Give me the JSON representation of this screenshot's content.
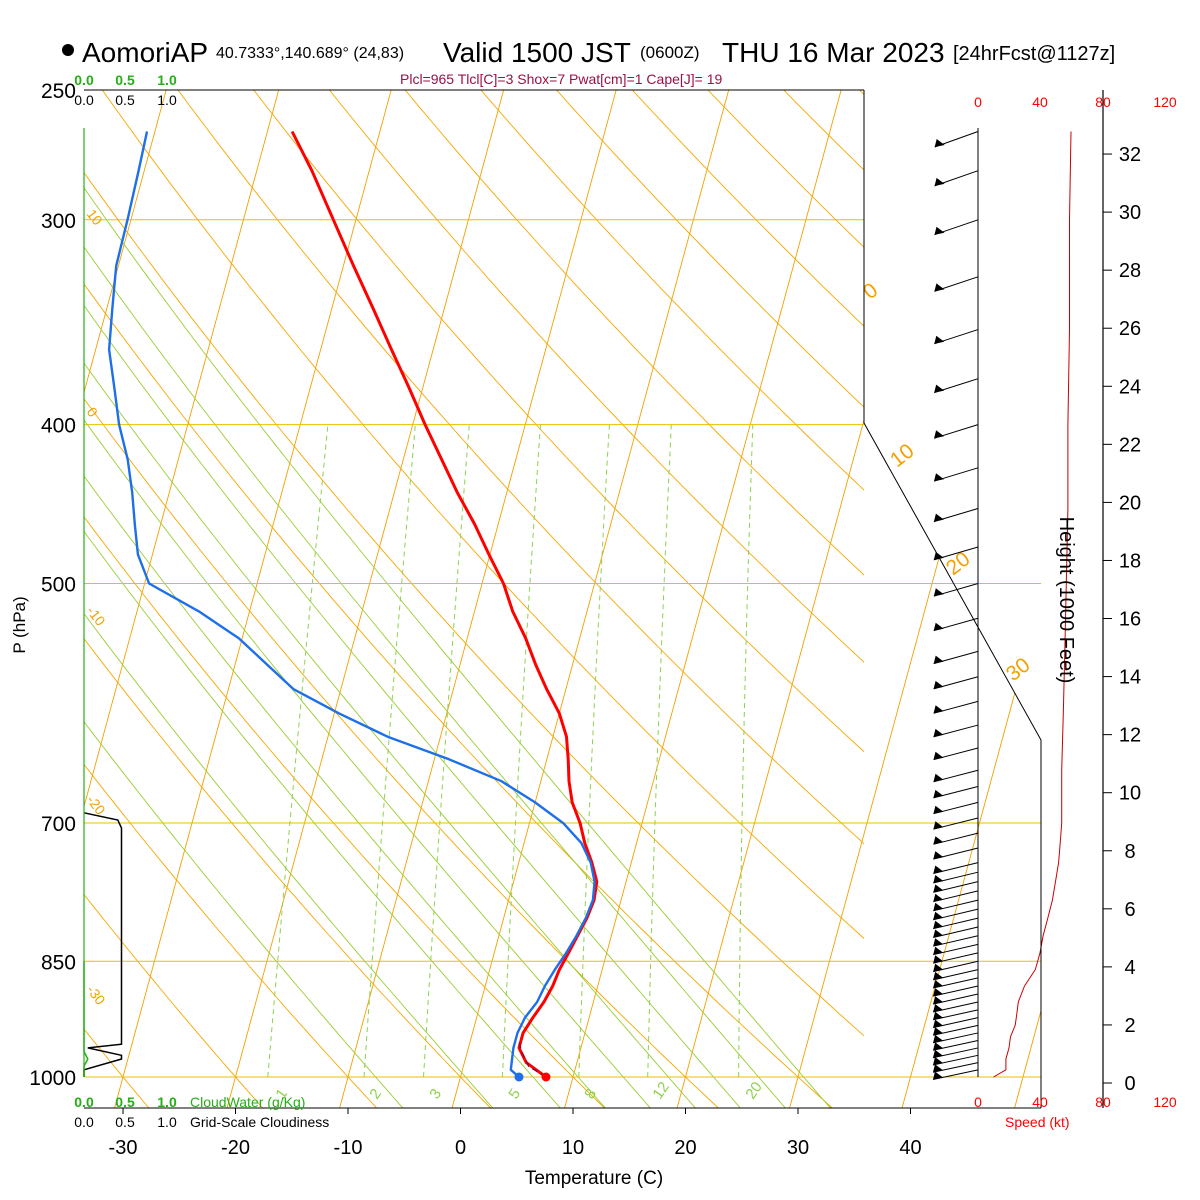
{
  "header": {
    "station": "AomoriAP",
    "coords": "40.7333°,140.689° (24,83)",
    "valid_prefix": "Valid 1500 JST",
    "valid_utc": "(0600Z)",
    "valid_date": "THU 16 Mar 2023",
    "forecast": "[24hrFcst@1127z]",
    "indices": "Plcl=965 Tlcl[C]=3 Shox=7 Pwat[cm]=1 Cape[J]= 19"
  },
  "scales": {
    "cloudwater_ticks": [
      "0.0",
      "0.5",
      "1.0"
    ],
    "cloudiness_ticks": [
      "0.0",
      "0.5",
      "1.0"
    ],
    "cloudwater_label": "CloudWater (g/Kg)",
    "cloudiness_label": "Grid-Scale Cloudiness",
    "speed_ticks": [
      "0",
      "40",
      "80",
      "120"
    ],
    "speed_label": "Speed (kt)"
  },
  "colors": {
    "isobar": "#e8c000",
    "isotherm": "#f5a000",
    "dry_adiabat": "#f5a800",
    "moist_adiabat": "#9acd32",
    "mixing_ratio": "#8fd14f",
    "temperature": "#ff0000",
    "dewpoint": "#1e6fe8",
    "parcel": "#8b0a3a",
    "cloudwater": "#22b014",
    "speed": "#cc0000"
  },
  "chart_data": {
    "type": "line",
    "title": "",
    "xlabel": "Temperature (C)",
    "ylabel": "P (hPa)",
    "y2label": "Height (1000 Feet)",
    "xlim": [
      -35,
      50
    ],
    "x_ticks": [
      -30,
      -20,
      -10,
      0,
      10,
      20,
      30,
      40
    ],
    "ylim": [
      1000,
      250
    ],
    "yscale": "log",
    "pressure_levels": [
      1000,
      850,
      700,
      500,
      400,
      300,
      250
    ],
    "height_ticks": [
      0,
      2,
      4,
      6,
      8,
      10,
      12,
      14,
      16,
      18,
      20,
      22,
      24,
      26,
      28,
      30,
      32
    ],
    "mixing_ratio_labels": [
      "1",
      "2",
      "3",
      "5",
      "8",
      "12",
      "20"
    ],
    "isotherm_labels": [
      "10",
      "0",
      "-10",
      "-20",
      "-30"
    ],
    "dry_adiabat_labels": [
      "0",
      "10",
      "20",
      "30"
    ],
    "series": [
      {
        "name": "Temperature",
        "points": [
          [
            7.6,
            1000
          ],
          [
            5.5,
            980
          ],
          [
            4.5,
            960
          ],
          [
            4.5,
            940
          ],
          [
            5.0,
            920
          ],
          [
            5.6,
            900
          ],
          [
            6.0,
            880
          ],
          [
            6.2,
            860
          ],
          [
            6.6,
            840
          ],
          [
            7.0,
            820
          ],
          [
            7.4,
            800
          ],
          [
            7.6,
            780
          ],
          [
            7.4,
            760
          ],
          [
            6.5,
            740
          ],
          [
            5.4,
            720
          ],
          [
            4.5,
            700
          ],
          [
            3.3,
            680
          ],
          [
            2.5,
            660
          ],
          [
            1.9,
            640
          ],
          [
            1.2,
            620
          ],
          [
            0.0,
            600
          ],
          [
            -1.7,
            580
          ],
          [
            -3.3,
            560
          ],
          [
            -4.8,
            540
          ],
          [
            -6.6,
            520
          ],
          [
            -8.1,
            500
          ],
          [
            -10.1,
            480
          ],
          [
            -12.1,
            460
          ],
          [
            -14.4,
            440
          ],
          [
            -16.6,
            420
          ],
          [
            -18.9,
            400
          ],
          [
            -21.2,
            380
          ],
          [
            -23.7,
            360
          ],
          [
            -26.3,
            340
          ],
          [
            -29.1,
            320
          ],
          [
            -32.0,
            300
          ],
          [
            -35.1,
            280
          ],
          [
            -37.8,
            265
          ]
        ]
      },
      {
        "name": "Dewpoint",
        "points": [
          [
            5.2,
            1000
          ],
          [
            4.3,
            990
          ],
          [
            4.0,
            960
          ],
          [
            4.0,
            940
          ],
          [
            4.3,
            920
          ],
          [
            5.0,
            900
          ],
          [
            5.3,
            880
          ],
          [
            5.8,
            860
          ],
          [
            6.4,
            840
          ],
          [
            6.9,
            820
          ],
          [
            7.3,
            800
          ],
          [
            7.5,
            780
          ],
          [
            7.2,
            760
          ],
          [
            6.4,
            740
          ],
          [
            5.1,
            720
          ],
          [
            3.0,
            700
          ],
          [
            0.0,
            680
          ],
          [
            -3.5,
            660
          ],
          [
            -8.7,
            640
          ],
          [
            -14.7,
            620
          ],
          [
            -19.6,
            600
          ],
          [
            -24.2,
            580
          ],
          [
            -27.2,
            560
          ],
          [
            -30.3,
            540
          ],
          [
            -34.5,
            520
          ],
          [
            -39.6,
            500
          ],
          [
            -41.3,
            480
          ],
          [
            -42.3,
            460
          ],
          [
            -43.3,
            440
          ],
          [
            -44.5,
            420
          ],
          [
            -46.1,
            400
          ],
          [
            -47.4,
            380
          ],
          [
            -48.8,
            360
          ],
          [
            -49.5,
            340
          ],
          [
            -50.2,
            320
          ],
          [
            -50.3,
            300
          ],
          [
            -50.5,
            280
          ],
          [
            -50.7,
            265
          ]
        ]
      },
      {
        "name": "Parcel",
        "points": [
          [
            7.6,
            1000
          ],
          [
            5.8,
            985
          ],
          [
            4.8,
            965
          ],
          [
            4.3,
            950
          ]
        ]
      }
    ],
    "cloudiness_profile": [
      [
        0,
        1000
      ],
      [
        0,
        990
      ],
      [
        0.5,
        975
      ],
      [
        0.5,
        970
      ],
      [
        0.05,
        960
      ],
      [
        0.5,
        955
      ],
      [
        0.5,
        705
      ],
      [
        0.45,
        697
      ],
      [
        0,
        690
      ]
    ],
    "cloudwater_profile": [
      [
        0,
        1000
      ],
      [
        0,
        985
      ],
      [
        0.05,
        975
      ],
      [
        0,
        965
      ],
      [
        0,
        850
      ]
    ],
    "wind_speed_profile": [
      [
        10,
        1000
      ],
      [
        18,
        990
      ],
      [
        18,
        975
      ],
      [
        20,
        960
      ],
      [
        21,
        945
      ],
      [
        24,
        930
      ],
      [
        25,
        915
      ],
      [
        26,
        900
      ],
      [
        30,
        880
      ],
      [
        37,
        860
      ],
      [
        40,
        840
      ],
      [
        42,
        820
      ],
      [
        45,
        800
      ],
      [
        48,
        780
      ],
      [
        50,
        760
      ],
      [
        52,
        740
      ],
      [
        53,
        720
      ],
      [
        54,
        700
      ],
      [
        54,
        650
      ],
      [
        55,
        600
      ],
      [
        56,
        550
      ],
      [
        57,
        500
      ],
      [
        58,
        450
      ],
      [
        58,
        400
      ],
      [
        59,
        350
      ],
      [
        59,
        300
      ],
      [
        60,
        265
      ]
    ],
    "wind_barb_levels": [
      990,
      980,
      970,
      960,
      950,
      940,
      930,
      920,
      910,
      900,
      890,
      880,
      870,
      860,
      850,
      840,
      830,
      820,
      810,
      800,
      790,
      780,
      770,
      760,
      750,
      740,
      725,
      710,
      695,
      680,
      665,
      650,
      630,
      610,
      590,
      570,
      550,
      525,
      500,
      475,
      450,
      425,
      400,
      375,
      350,
      325,
      300,
      280,
      265
    ]
  }
}
